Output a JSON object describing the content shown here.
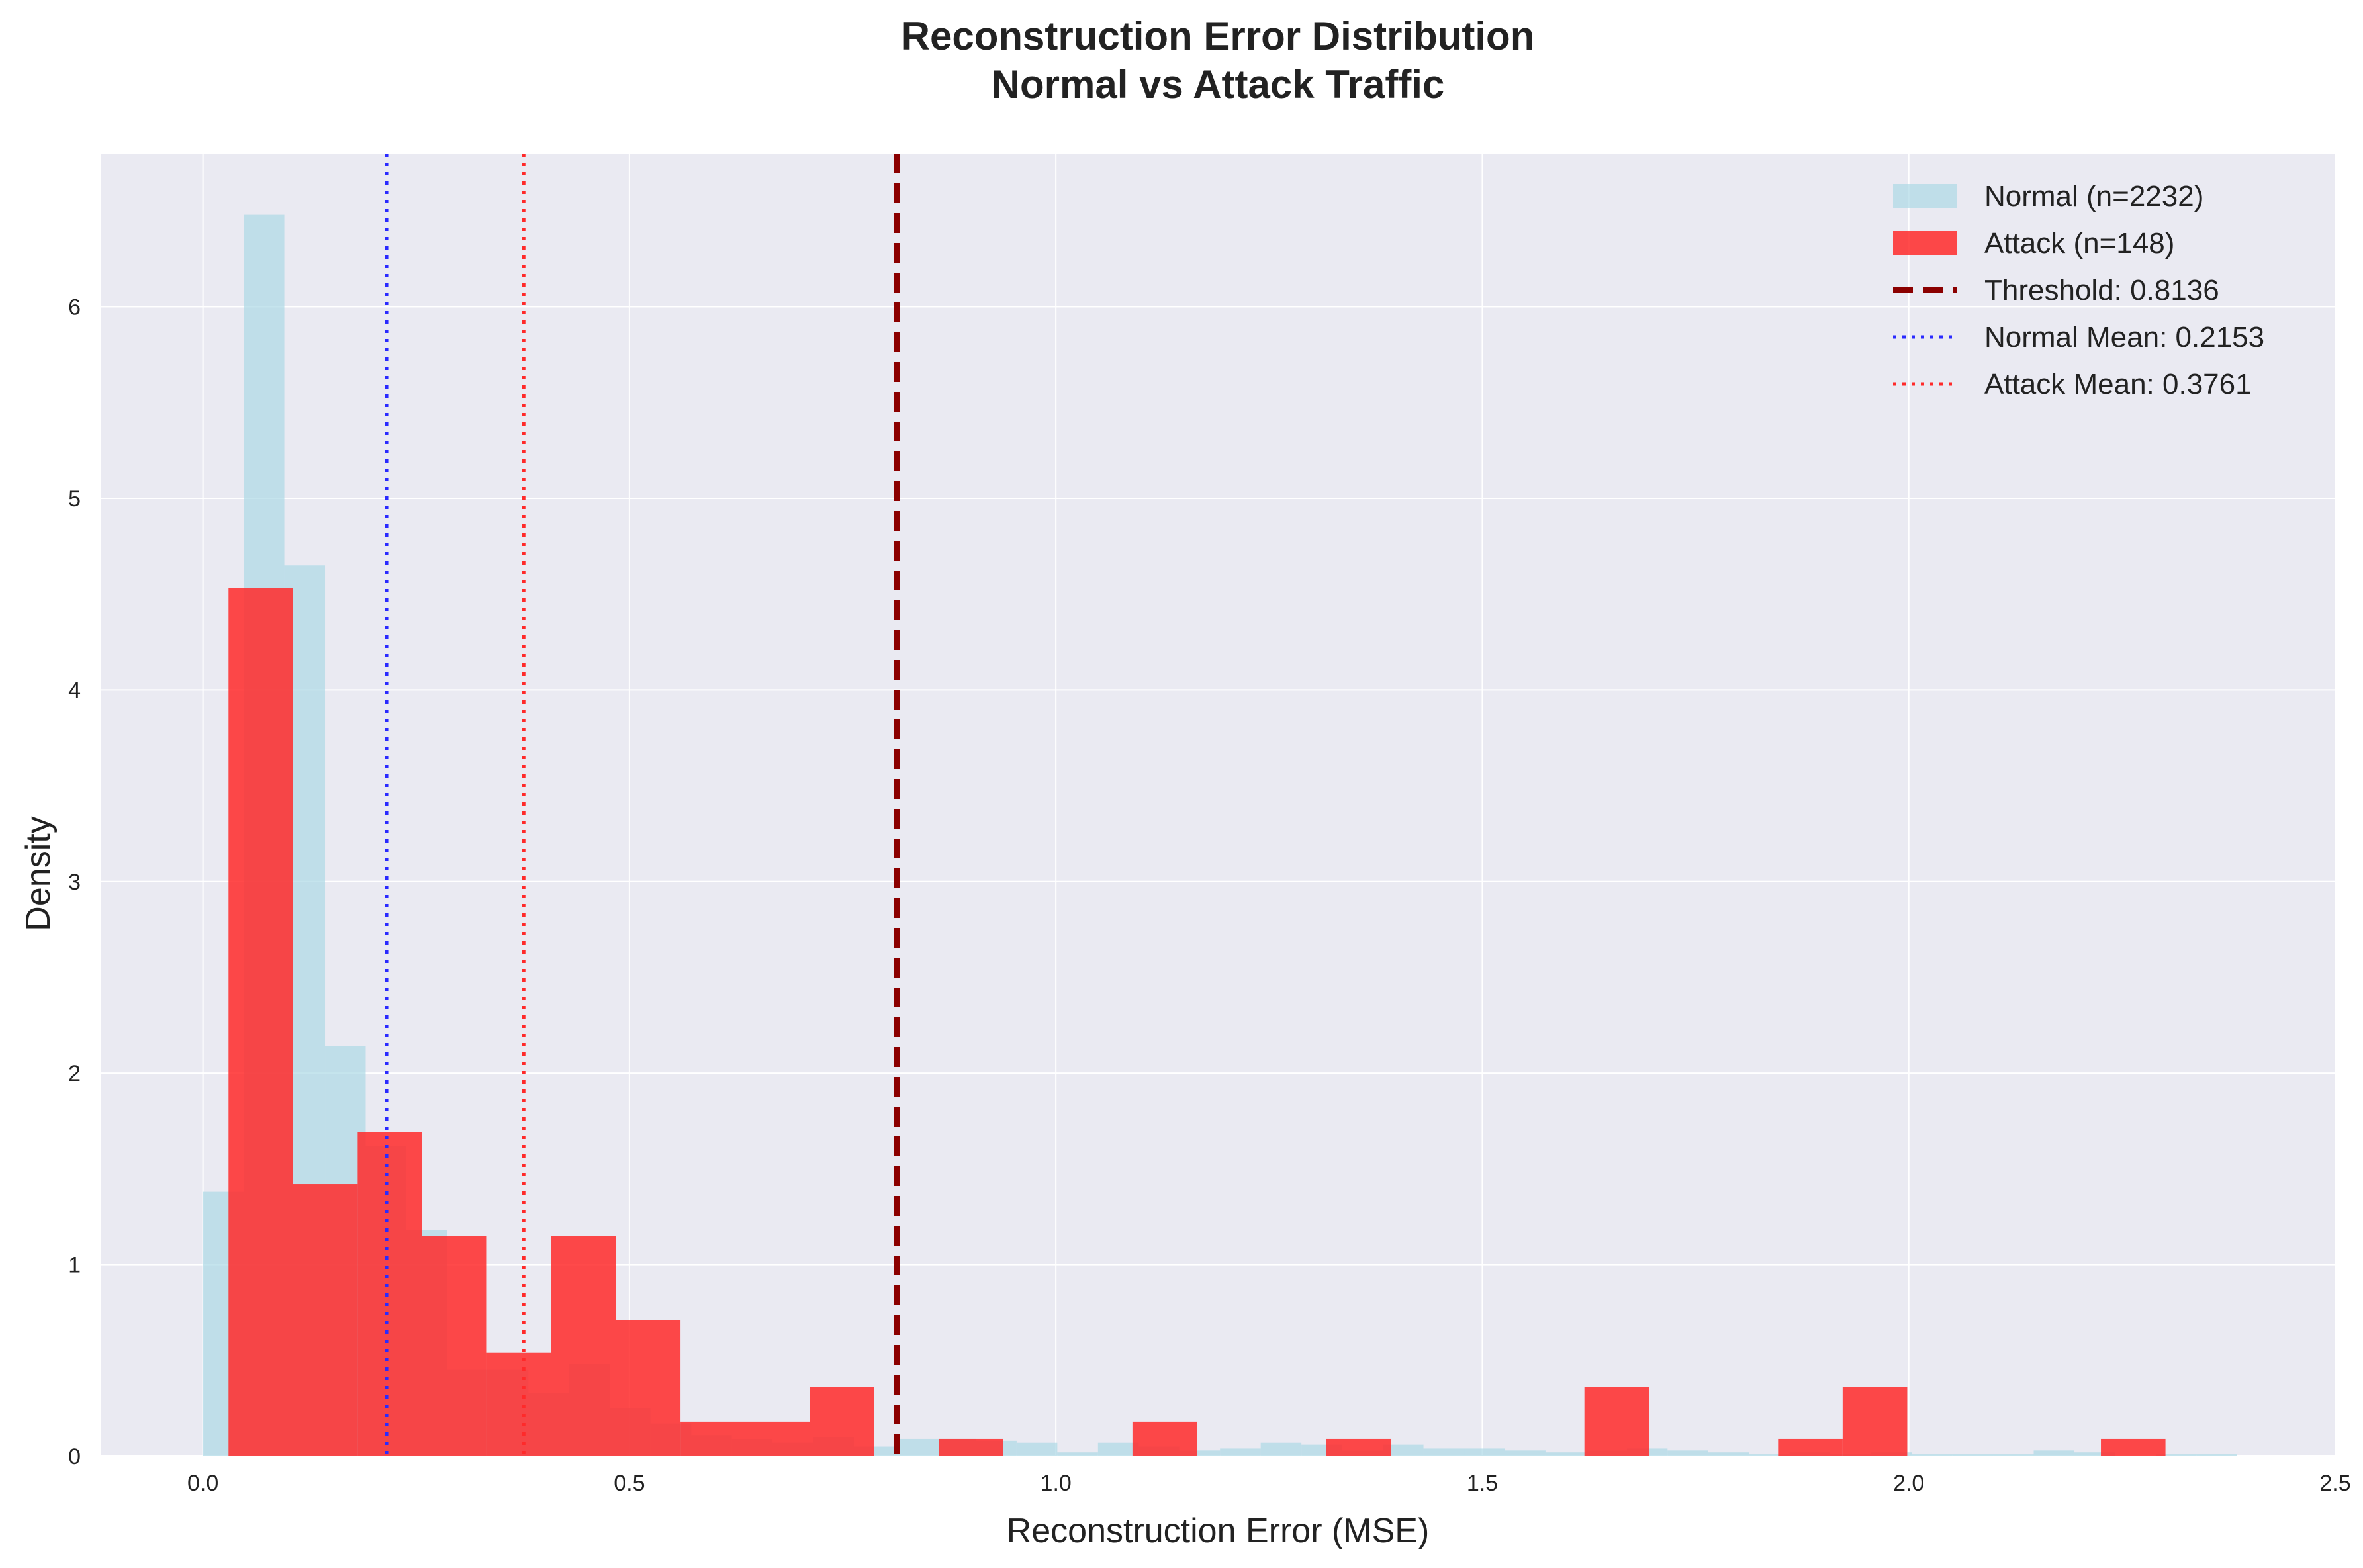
{
  "chart_data": {
    "type": "bar",
    "title_lines": [
      "Reconstruction Error Distribution",
      "Normal vs Attack Traffic"
    ],
    "xlabel": "Reconstruction Error (MSE)",
    "ylabel": "Density",
    "xlim": [
      -0.12,
      2.5
    ],
    "ylim": [
      0,
      6.8
    ],
    "xticks": [
      0.0,
      0.5,
      1.0,
      1.5,
      2.0,
      2.5
    ],
    "xtick_labels": [
      "0.0",
      "0.5",
      "1.0",
      "1.5",
      "2.0",
      "2.5"
    ],
    "yticks": [
      0,
      1,
      2,
      3,
      4,
      5,
      6
    ],
    "ytick_labels": [
      "0",
      "1",
      "2",
      "3",
      "4",
      "5",
      "6"
    ],
    "grid": true,
    "legend_position": "top-right",
    "series": [
      {
        "name": "Normal (n=2232)",
        "color": "#add8e6",
        "opacity": 0.7,
        "bin_width": 0.0477,
        "bin_starts": [
          0.0,
          0.0477,
          0.0954,
          0.1431,
          0.1908,
          0.2385,
          0.2862,
          0.3339,
          0.3816,
          0.4293,
          0.477,
          0.5247,
          0.5724,
          0.6201,
          0.6678,
          0.7155,
          0.7632,
          0.8109,
          0.8586,
          0.9063,
          0.954,
          1.0017,
          1.0494,
          1.0971,
          1.1448,
          1.1925,
          1.2402,
          1.2879,
          1.3356,
          1.3833,
          1.431,
          1.4787,
          1.5264,
          1.5741,
          1.6218,
          1.6695,
          1.7172,
          1.7649,
          1.8126,
          1.8603,
          1.908,
          1.9557,
          2.0034,
          2.0511,
          2.0988,
          2.1465,
          2.1942,
          2.2419,
          2.2896,
          2.3373
        ],
        "values": [
          1.38,
          6.48,
          4.65,
          2.14,
          1.62,
          1.18,
          0.45,
          0.45,
          0.33,
          0.48,
          0.25,
          0.17,
          0.11,
          0.09,
          0.07,
          0.1,
          0.05,
          0.09,
          0.09,
          0.08,
          0.07,
          0.02,
          0.07,
          0.05,
          0.03,
          0.04,
          0.07,
          0.06,
          0.03,
          0.06,
          0.04,
          0.04,
          0.03,
          0.02,
          0.03,
          0.04,
          0.03,
          0.02,
          0.01,
          0.02,
          0.01,
          0.02,
          0.01,
          0.01,
          0.01,
          0.03,
          0.02,
          0.0,
          0.01,
          0.01
        ]
      },
      {
        "name": "Attack (n=148)",
        "color": "#ff2a2a",
        "opacity": 0.85,
        "bin_width": 0.0757,
        "bin_starts": [
          0.03,
          0.1057,
          0.1814,
          0.2571,
          0.3328,
          0.4085,
          0.4842,
          0.5599,
          0.6356,
          0.7113,
          0.787,
          0.8627,
          0.9384,
          1.0141,
          1.0898,
          1.1655,
          1.2412,
          1.3169,
          1.3926,
          1.4683,
          1.544,
          1.6197,
          1.6954,
          1.7711,
          1.8468,
          1.9225,
          1.9982,
          2.0739,
          2.1496,
          2.2253
        ],
        "values": [
          4.53,
          1.42,
          1.69,
          1.15,
          0.54,
          1.15,
          0.71,
          0.18,
          0.18,
          0.36,
          0.0,
          0.09,
          0.0,
          0.0,
          0.18,
          0.0,
          0.0,
          0.09,
          0.0,
          0.0,
          0.0,
          0.36,
          0.0,
          0.0,
          0.09,
          0.36,
          0.0,
          0.0,
          0.0,
          0.09
        ]
      }
    ],
    "reference_lines": [
      {
        "name": "Threshold: 0.8136",
        "x": 0.8136,
        "color": "#8b0000",
        "style": "dashed"
      },
      {
        "name": "Normal Mean: 0.2153",
        "x": 0.2153,
        "color": "#2a2aff",
        "style": "dotted"
      },
      {
        "name": "Attack Mean: 0.3761",
        "x": 0.3761,
        "color": "#ff2a2a",
        "style": "dotted"
      }
    ]
  }
}
